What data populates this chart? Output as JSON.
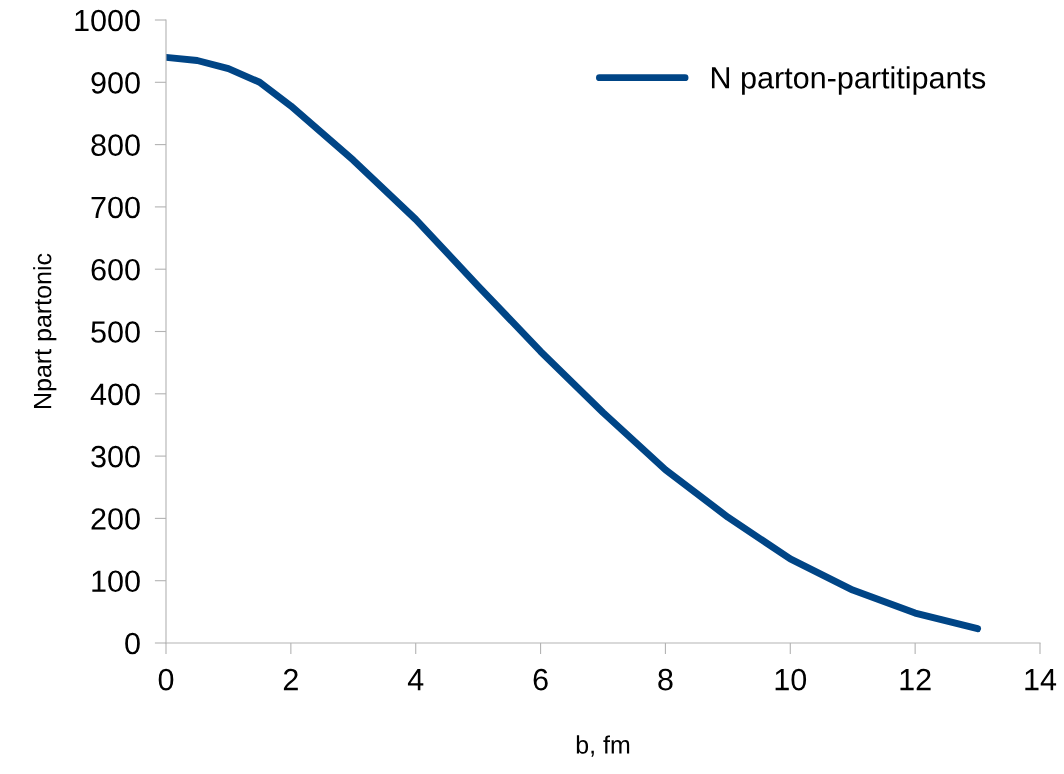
{
  "chart_data": {
    "type": "line",
    "xlabel": "b, fm",
    "ylabel": "Npart partonic",
    "x": [
      0,
      0.5,
      1,
      1.5,
      2,
      3,
      4,
      5,
      6,
      7,
      8,
      9,
      10,
      11,
      12,
      13
    ],
    "series": [
      {
        "name": "N parton-partitipants",
        "color": "#004586",
        "values": [
          940,
          935,
          922,
          900,
          862,
          775,
          680,
          573,
          468,
          370,
          278,
          202,
          135,
          85,
          48,
          23
        ]
      }
    ],
    "xlim": [
      0,
      14
    ],
    "xticks": [
      0,
      2,
      4,
      6,
      8,
      10,
      12,
      14
    ],
    "ylim": [
      0,
      1000
    ],
    "yticks": [
      0,
      100,
      200,
      300,
      400,
      500,
      600,
      700,
      800,
      900,
      1000
    ],
    "grid": false,
    "legend": "top right",
    "marker": "none",
    "line_style": "solid"
  }
}
